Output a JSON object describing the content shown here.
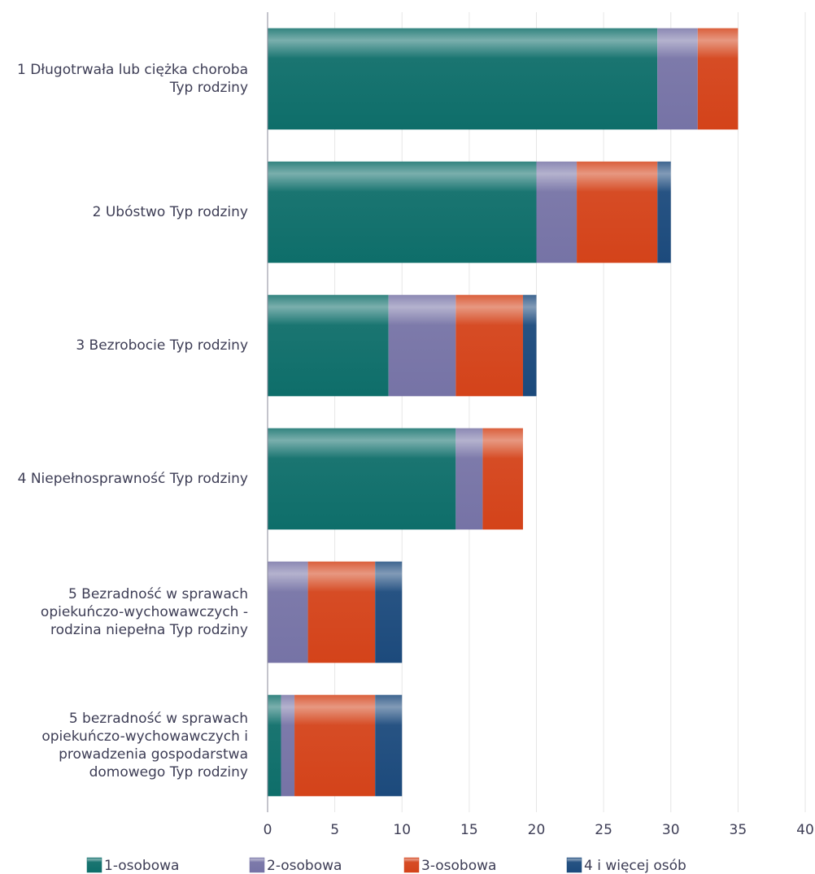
{
  "chart_data": {
    "type": "stacked-barh",
    "categories": [
      "1 Długotrwała lub ciężka choroba Typ rodziny",
      "2 Ubóstwo Typ rodziny",
      "3 Bezrobocie Typ rodziny",
      "4 Niepełnosprawność Typ rodziny",
      "5 Bezradność w sprawach opiekuńczo-wychowawczych - rodzina niepełna Typ rodziny",
      "5 bezradność w sprawach opiekuńczo-wychowawczych i prowadzenia gospodarstwa domowego Typ rodziny"
    ],
    "series": [
      {
        "name": "1-osobowa",
        "color": "#0e6e6a",
        "values": [
          29,
          20,
          9,
          14,
          0,
          1
        ]
      },
      {
        "name": "2-osobowa",
        "color": "#7673a6",
        "values": [
          3,
          3,
          5,
          2,
          3,
          1
        ]
      },
      {
        "name": "3-osobowa",
        "color": "#d4431a",
        "values": [
          3,
          6,
          5,
          3,
          5,
          6
        ]
      },
      {
        "name": "4  i więcej osób",
        "color": "#1c4a7c",
        "values": [
          0,
          1,
          1,
          0,
          2,
          2
        ]
      }
    ],
    "xlim": [
      0,
      40
    ],
    "xticks": [
      0,
      5,
      10,
      15,
      20,
      25,
      30,
      35,
      40
    ],
    "grid": true,
    "legend": "bottom"
  }
}
